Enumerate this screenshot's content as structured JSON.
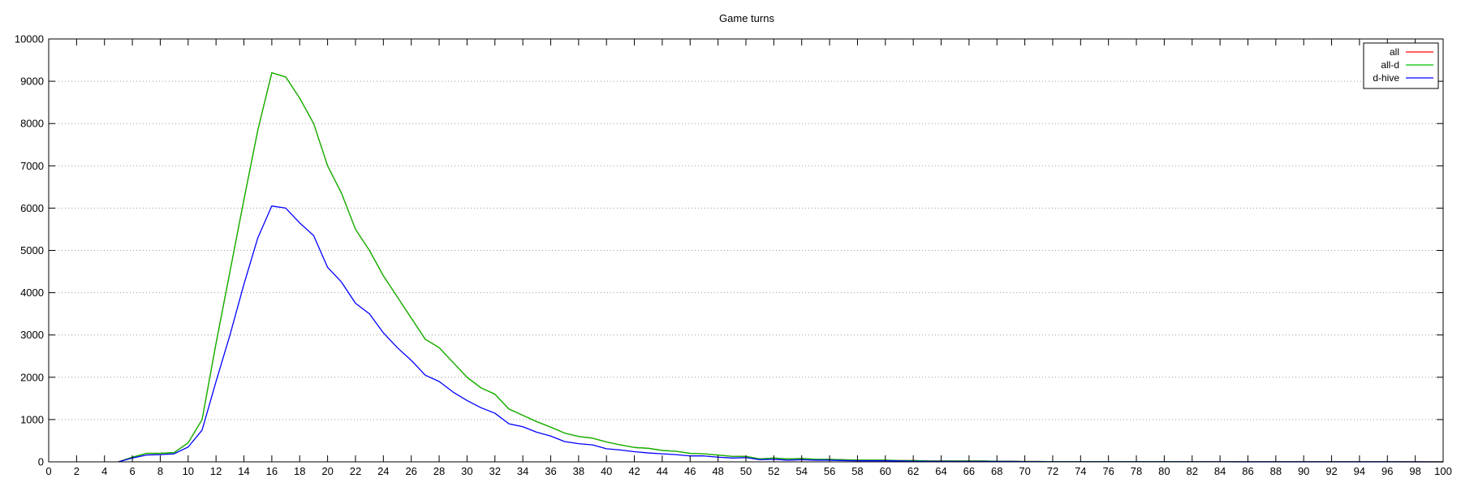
{
  "chart_data": {
    "type": "line",
    "title": "Game turns",
    "xlabel": "",
    "ylabel": "",
    "xlim": [
      0,
      100
    ],
    "ylim": [
      0,
      10000
    ],
    "x_ticks": [
      "0",
      "2",
      "4",
      "6",
      "8",
      "10",
      "12",
      "14",
      "16",
      "18",
      "20",
      "22",
      "24",
      "26",
      "28",
      "30",
      "32",
      "34",
      "36",
      "38",
      "40",
      "42",
      "44",
      "46",
      "48",
      "50",
      "52",
      "54",
      "56",
      "58",
      "60",
      "62",
      "64",
      "66",
      "68",
      "70",
      "72",
      "74",
      "76",
      "78",
      "80",
      "82",
      "84",
      "86",
      "88",
      "90",
      "92",
      "94",
      "96",
      "98",
      "100"
    ],
    "y_ticks": [
      "0",
      "1000",
      "2000",
      "3000",
      "4000",
      "5000",
      "6000",
      "7000",
      "8000",
      "9000",
      "10000"
    ],
    "grid": "horizontal dotted",
    "legend_position": "top-right",
    "series": [
      {
        "name": "all",
        "color": "#ff0000",
        "x": [
          5,
          6,
          7,
          8,
          9,
          10,
          11,
          12,
          13,
          14,
          15,
          16,
          17,
          18,
          19,
          20,
          21,
          22,
          23,
          24,
          25,
          26,
          27,
          28,
          29,
          30,
          31,
          32,
          33,
          34,
          35,
          36,
          37,
          38,
          39,
          40,
          41,
          42,
          43,
          44,
          45,
          46,
          47,
          48,
          49,
          50,
          51,
          52,
          53,
          54,
          55,
          56,
          57,
          58,
          59,
          60,
          61,
          62,
          63,
          64,
          65,
          66,
          67,
          68,
          69,
          70,
          71,
          72,
          76,
          80,
          84,
          88,
          92,
          96,
          100
        ],
        "y": [
          0,
          110,
          200,
          200,
          220,
          450,
          1000,
          2800,
          4500,
          6200,
          7850,
          9200,
          9100,
          8600,
          8000,
          7000,
          6350,
          5500,
          5000,
          4400,
          3900,
          3400,
          2900,
          2700,
          2350,
          2000,
          1750,
          1600,
          1250,
          1100,
          950,
          820,
          680,
          600,
          560,
          470,
          400,
          340,
          320,
          270,
          250,
          200,
          190,
          160,
          130,
          130,
          70,
          90,
          70,
          80,
          60,
          60,
          50,
          40,
          40,
          40,
          30,
          30,
          20,
          20,
          20,
          20,
          20,
          15,
          15,
          10,
          10,
          5,
          5,
          5,
          3,
          3,
          2,
          2,
          0
        ]
      },
      {
        "name": "all-d",
        "color": "#00c000",
        "x": [
          5,
          6,
          7,
          8,
          9,
          10,
          11,
          12,
          13,
          14,
          15,
          16,
          17,
          18,
          19,
          20,
          21,
          22,
          23,
          24,
          25,
          26,
          27,
          28,
          29,
          30,
          31,
          32,
          33,
          34,
          35,
          36,
          37,
          38,
          39,
          40,
          41,
          42,
          43,
          44,
          45,
          46,
          47,
          48,
          49,
          50,
          51,
          52,
          53,
          54,
          55,
          56,
          57,
          58,
          59,
          60,
          61,
          62,
          63,
          64,
          65,
          66,
          67,
          68,
          69,
          70,
          71,
          72,
          76,
          80,
          84,
          88,
          92,
          96,
          100
        ],
        "y": [
          0,
          110,
          200,
          200,
          220,
          450,
          1000,
          2800,
          4500,
          6200,
          7850,
          9200,
          9100,
          8600,
          8000,
          7000,
          6350,
          5500,
          5000,
          4400,
          3900,
          3400,
          2900,
          2700,
          2350,
          2000,
          1750,
          1600,
          1250,
          1100,
          950,
          820,
          680,
          600,
          560,
          470,
          400,
          340,
          320,
          270,
          250,
          200,
          190,
          160,
          130,
          130,
          70,
          90,
          70,
          80,
          60,
          60,
          50,
          40,
          40,
          40,
          30,
          30,
          20,
          20,
          20,
          20,
          20,
          15,
          15,
          10,
          10,
          5,
          5,
          5,
          3,
          3,
          2,
          2,
          0
        ]
      },
      {
        "name": "d-hive",
        "color": "#0000ff",
        "x": [
          5,
          6,
          7,
          8,
          9,
          10,
          11,
          12,
          13,
          14,
          15,
          16,
          17,
          18,
          19,
          20,
          21,
          22,
          23,
          24,
          25,
          26,
          27,
          28,
          29,
          30,
          31,
          32,
          33,
          34,
          35,
          36,
          37,
          38,
          39,
          40,
          41,
          42,
          43,
          44,
          45,
          46,
          47,
          48,
          49,
          50,
          51,
          52,
          53,
          54,
          55,
          56,
          57,
          58,
          59,
          60,
          61,
          62,
          63,
          64,
          65,
          66,
          67,
          68,
          69,
          70,
          71,
          72,
          76,
          80,
          84,
          88,
          92,
          96,
          100
        ],
        "y": [
          0,
          90,
          160,
          170,
          190,
          350,
          750,
          1900,
          3000,
          4200,
          5300,
          6050,
          6000,
          5650,
          5350,
          4600,
          4250,
          3750,
          3500,
          3050,
          2700,
          2400,
          2050,
          1900,
          1650,
          1450,
          1280,
          1150,
          900,
          830,
          700,
          610,
          480,
          430,
          400,
          310,
          280,
          240,
          210,
          190,
          170,
          140,
          140,
          110,
          90,
          100,
          50,
          60,
          40,
          50,
          40,
          40,
          30,
          25,
          25,
          25,
          20,
          15,
          12,
          12,
          10,
          10,
          10,
          8,
          8,
          5,
          5,
          3,
          3,
          2,
          2,
          1,
          1,
          1,
          0
        ]
      }
    ]
  }
}
